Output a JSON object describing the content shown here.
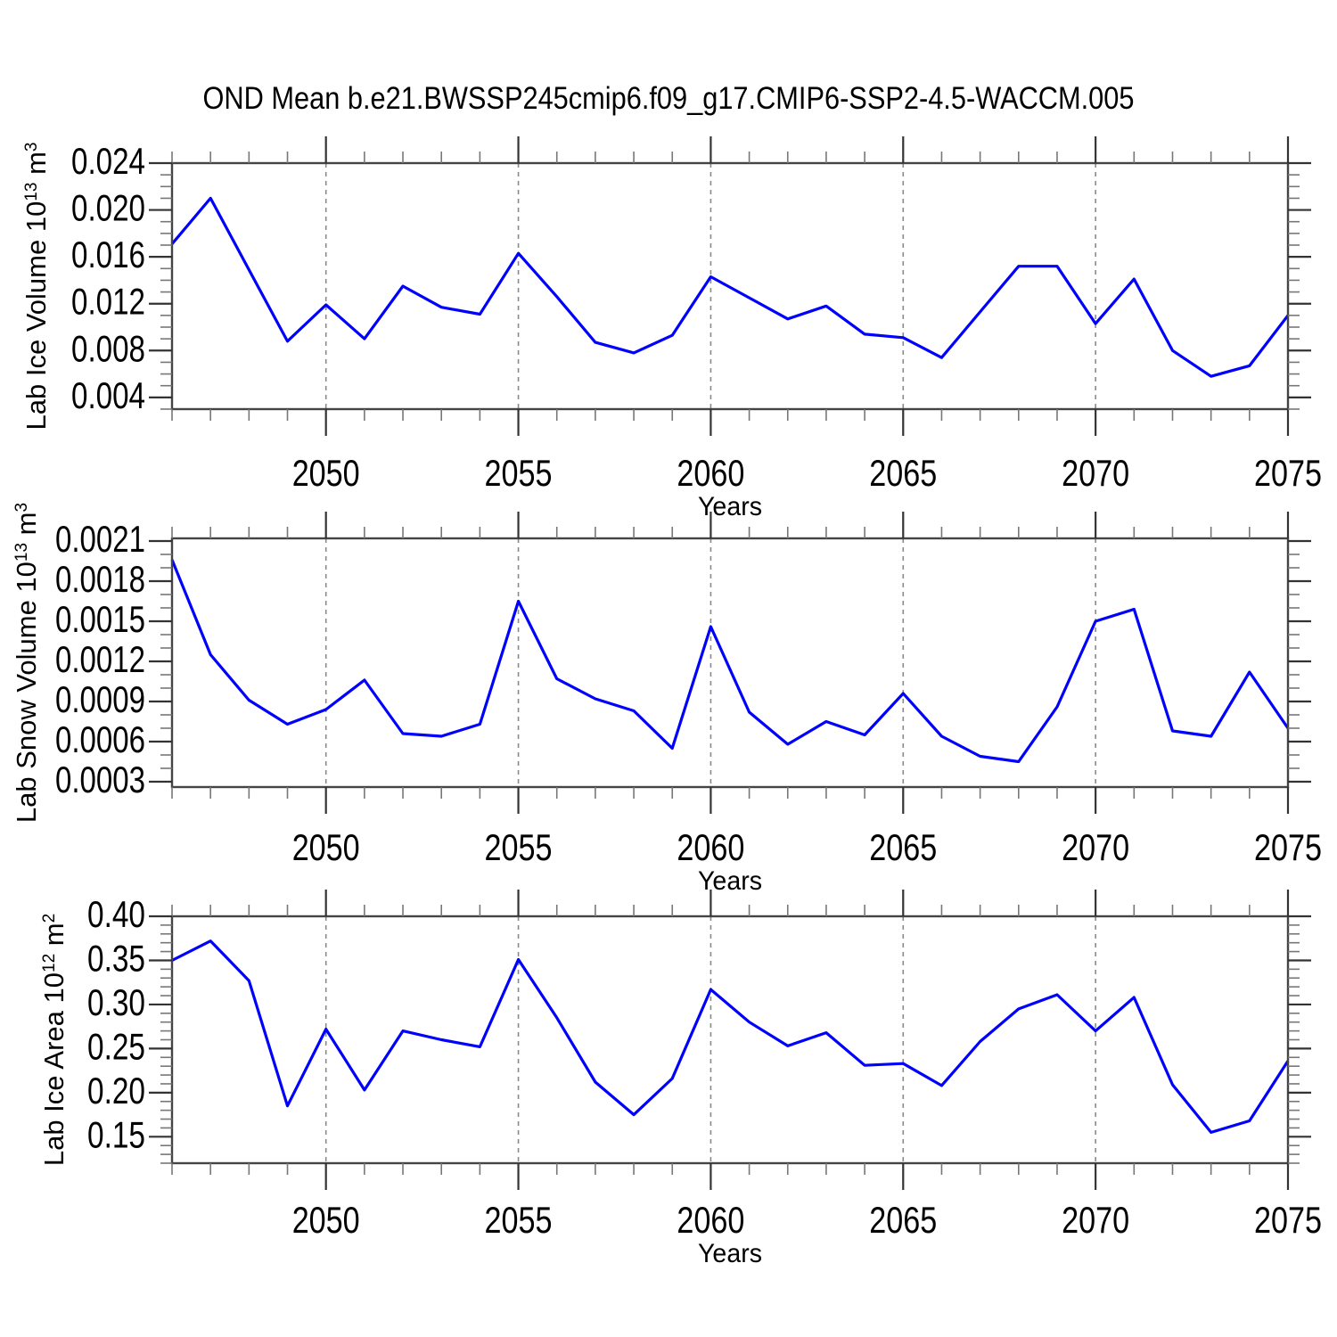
{
  "page": {
    "title": "OND Mean b.e21.BWSSP245cmip6.f09_g17.CMIP6-SSP2-4.5-WACCM.005"
  },
  "style": {
    "background": "#ffffff",
    "line_color": "#0000ff",
    "frame_color": "#444444",
    "major_tick_color": "#333333",
    "minor_tick_color": "#777777",
    "grid_color": "#8a8a8a",
    "text_color": "#000000"
  },
  "chart_data": [
    {
      "id": "lab-ice-volume",
      "type": "line",
      "xlabel": "Years",
      "ylabel": "Lab Ice Volume 10^13 m^3",
      "ylabel_parts": [
        {
          "t": "Lab Ice Volume 10"
        },
        {
          "t": "13",
          "sup": true
        },
        {
          "t": " m"
        },
        {
          "t": "3",
          "sup": true
        }
      ],
      "x": [
        2046,
        2047,
        2048,
        2049,
        2050,
        2051,
        2052,
        2053,
        2054,
        2055,
        2056,
        2057,
        2058,
        2059,
        2060,
        2061,
        2062,
        2063,
        2064,
        2065,
        2066,
        2067,
        2068,
        2069,
        2070,
        2071,
        2072,
        2073,
        2074,
        2075
      ],
      "values": [
        0.0171,
        0.021,
        0.0149,
        0.0088,
        0.0119,
        0.009,
        0.0135,
        0.0117,
        0.0111,
        0.0163,
        0.0126,
        0.0087,
        0.0078,
        0.0093,
        0.0143,
        0.0125,
        0.0107,
        0.0118,
        0.0094,
        0.0091,
        0.0074,
        0.0113,
        0.0152,
        0.0152,
        0.0103,
        0.0141,
        0.008,
        0.0058,
        0.0067,
        0.011
      ],
      "xlim": [
        2046,
        2075
      ],
      "ylim": [
        0.003,
        0.024
      ],
      "xticks": [
        2050,
        2055,
        2060,
        2065,
        2070,
        2075
      ],
      "xtick_labels": [
        "2050",
        "2055",
        "2060",
        "2065",
        "2070",
        "2075"
      ],
      "x_minor_step": 1,
      "yticks": [
        0.004,
        0.008,
        0.012,
        0.016,
        0.02,
        0.024
      ],
      "ytick_labels": [
        "0.004",
        "0.008",
        "0.012",
        "0.016",
        "0.020",
        "0.024"
      ],
      "y_minor_step": 0.001,
      "grid": "vertical-dashed-at-x-majors",
      "legend": "none"
    },
    {
      "id": "lab-snow-volume",
      "type": "line",
      "xlabel": "Years",
      "ylabel": "Lab Snow Volume 10^13 m^3",
      "ylabel_parts": [
        {
          "t": "Lab Snow Volume 10"
        },
        {
          "t": "13",
          "sup": true
        },
        {
          "t": " m"
        },
        {
          "t": "3",
          "sup": true
        }
      ],
      "x": [
        2046,
        2047,
        2048,
        2049,
        2050,
        2051,
        2052,
        2053,
        2054,
        2055,
        2056,
        2057,
        2058,
        2059,
        2060,
        2061,
        2062,
        2063,
        2064,
        2065,
        2066,
        2067,
        2068,
        2069,
        2070,
        2071,
        2072,
        2073,
        2074,
        2075
      ],
      "values": [
        0.00196,
        0.00125,
        0.00091,
        0.00073,
        0.00084,
        0.00106,
        0.00066,
        0.00064,
        0.00073,
        0.00165,
        0.00107,
        0.00092,
        0.00083,
        0.00055,
        0.00146,
        0.00082,
        0.00058,
        0.00075,
        0.00065,
        0.00096,
        0.00064,
        0.00049,
        0.00045,
        0.00086,
        0.0015,
        0.00159,
        0.00068,
        0.00064,
        0.00112,
        0.0007
      ],
      "xlim": [
        2046,
        2075
      ],
      "ylim": [
        0.00026,
        0.00212
      ],
      "xticks": [
        2050,
        2055,
        2060,
        2065,
        2070,
        2075
      ],
      "xtick_labels": [
        "2050",
        "2055",
        "2060",
        "2065",
        "2070",
        "2075"
      ],
      "x_minor_step": 1,
      "yticks": [
        0.0003,
        0.0006,
        0.0009,
        0.0012,
        0.0015,
        0.0018,
        0.0021
      ],
      "ytick_labels": [
        "0.0003",
        "0.0006",
        "0.0009",
        "0.0012",
        "0.0015",
        "0.0018",
        "0.0021"
      ],
      "y_minor_step": 0.0001,
      "grid": "vertical-dashed-at-x-majors",
      "legend": "none"
    },
    {
      "id": "lab-ice-area",
      "type": "line",
      "xlabel": "Years",
      "ylabel": "Lab Ice Area 10^12 m^2",
      "ylabel_parts": [
        {
          "t": "Lab Ice Area 10"
        },
        {
          "t": "12",
          "sup": true
        },
        {
          "t": " m"
        },
        {
          "t": "2",
          "sup": true
        }
      ],
      "x": [
        2046,
        2047,
        2048,
        2049,
        2050,
        2051,
        2052,
        2053,
        2054,
        2055,
        2056,
        2057,
        2058,
        2059,
        2060,
        2061,
        2062,
        2063,
        2064,
        2065,
        2066,
        2067,
        2068,
        2069,
        2070,
        2071,
        2072,
        2073,
        2074,
        2075
      ],
      "values": [
        0.35,
        0.372,
        0.327,
        0.185,
        0.272,
        0.203,
        0.27,
        0.26,
        0.252,
        0.351,
        0.285,
        0.212,
        0.175,
        0.216,
        0.317,
        0.28,
        0.253,
        0.268,
        0.231,
        0.233,
        0.208,
        0.258,
        0.295,
        0.311,
        0.27,
        0.308,
        0.209,
        0.155,
        0.168,
        0.236
      ],
      "xlim": [
        2046,
        2075
      ],
      "ylim": [
        0.12,
        0.4
      ],
      "xticks": [
        2050,
        2055,
        2060,
        2065,
        2070,
        2075
      ],
      "xtick_labels": [
        "2050",
        "2055",
        "2060",
        "2065",
        "2070",
        "2075"
      ],
      "x_minor_step": 1,
      "yticks": [
        0.15,
        0.2,
        0.25,
        0.3,
        0.35,
        0.4
      ],
      "ytick_labels": [
        "0.15",
        "0.20",
        "0.25",
        "0.30",
        "0.35",
        "0.40"
      ],
      "y_minor_step": 0.01,
      "grid": "vertical-dashed-at-x-majors",
      "legend": "none"
    }
  ]
}
